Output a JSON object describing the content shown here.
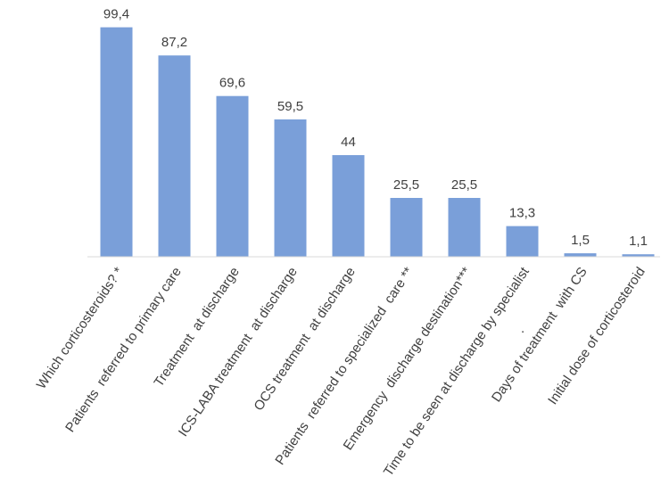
{
  "chart_data": {
    "type": "bar",
    "categories": [
      "Which corticosteroids? *",
      "Patients  referred to primary care",
      "Treatment  at discharge",
      "ICS-LABA treatment  at discharge",
      "OCS treatment  at discharge",
      "Patients  referred to specialized  care **",
      "Emergency  discharge destination***",
      "Time to be seen at discharge by specialist",
      "Days of treatment  with CS",
      "Initial dose of corticosteroid"
    ],
    "values": [
      99.4,
      87.2,
      69.6,
      59.5,
      44,
      25.5,
      25.5,
      13.3,
      1.5,
      1.1
    ],
    "value_labels": [
      "99,4",
      "87,2",
      "69,6",
      "59,5",
      "44",
      "25,5",
      "25,5",
      "13,3",
      "1,5",
      "1,1"
    ],
    "stray_mark": ".",
    "title": "",
    "xlabel": "",
    "ylabel": "",
    "ylim": [
      0,
      100
    ],
    "grid": false,
    "legend": "none",
    "colors": {
      "bar": "#7a9fd9",
      "axis": "#d9d9d9",
      "text": "#404040"
    }
  }
}
